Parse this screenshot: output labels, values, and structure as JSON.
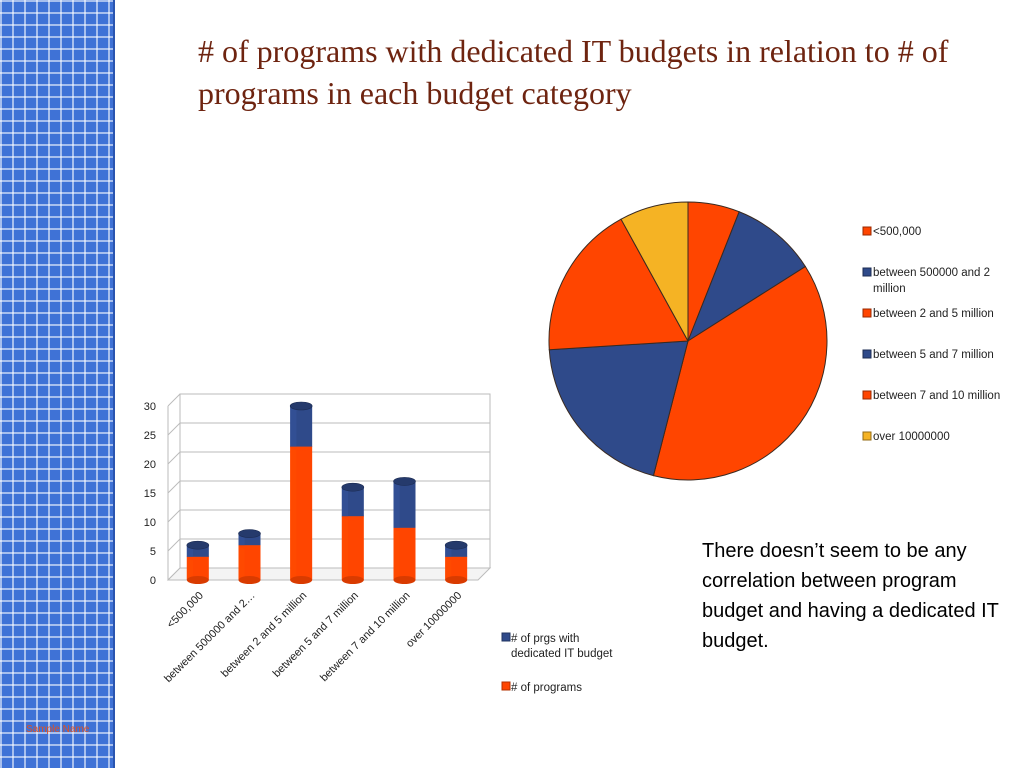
{
  "slide": {
    "title": "# of programs with dedicated IT budgets in relation to # of programs in each budget category",
    "note": "There doesn’t seem to be any correlation between program budget and having a dedicated IT budget.",
    "footer": "Sample Name"
  },
  "colors": {
    "orange": "#ff4500",
    "navy": "#2f4a8a",
    "gold": "#f5b324"
  },
  "chart_data": [
    {
      "type": "bar",
      "stacked": true,
      "categories": [
        "<500,000",
        "between 500000 and 2…",
        "between 2 and 5 million",
        "between 5 and 7 million",
        "between 7 and 10 million",
        "over 10000000"
      ],
      "series": [
        {
          "name": "# of programs",
          "color": "#ff4500",
          "values": [
            4,
            6,
            23,
            11,
            9,
            4
          ]
        },
        {
          "name": "# of prgs with dedicated IT budget",
          "color": "#2f4a8a",
          "values": [
            2,
            2,
            7,
            5,
            8,
            2
          ]
        }
      ],
      "yticks": [
        0,
        5,
        10,
        15,
        20,
        25,
        30
      ],
      "ylim": [
        0,
        30
      ],
      "legend": [
        {
          "label_lines": [
            "# of prgs with",
            "dedicated IT budget"
          ],
          "color": "#2f4a8a"
        },
        {
          "label_lines": [
            "# of programs"
          ],
          "color": "#ff4500"
        }
      ],
      "legend_position": "right"
    },
    {
      "type": "pie",
      "slices": [
        {
          "label_lines": [
            "<500,000"
          ],
          "value": 6,
          "color": "#ff4500"
        },
        {
          "label_lines": [
            "between 500000 and 2",
            "million"
          ],
          "value": 10,
          "color": "#2f4a8a"
        },
        {
          "label_lines": [
            "between 2 and 5 million"
          ],
          "value": 38,
          "color": "#ff4500"
        },
        {
          "label_lines": [
            "between 5 and 7 million"
          ],
          "value": 20,
          "color": "#2f4a8a"
        },
        {
          "label_lines": [
            "between 7 and 10 million"
          ],
          "value": 18,
          "color": "#ff4500"
        },
        {
          "label_lines": [
            "over 10000000"
          ],
          "value": 8,
          "color": "#f5b324"
        }
      ],
      "legend_position": "right"
    }
  ]
}
